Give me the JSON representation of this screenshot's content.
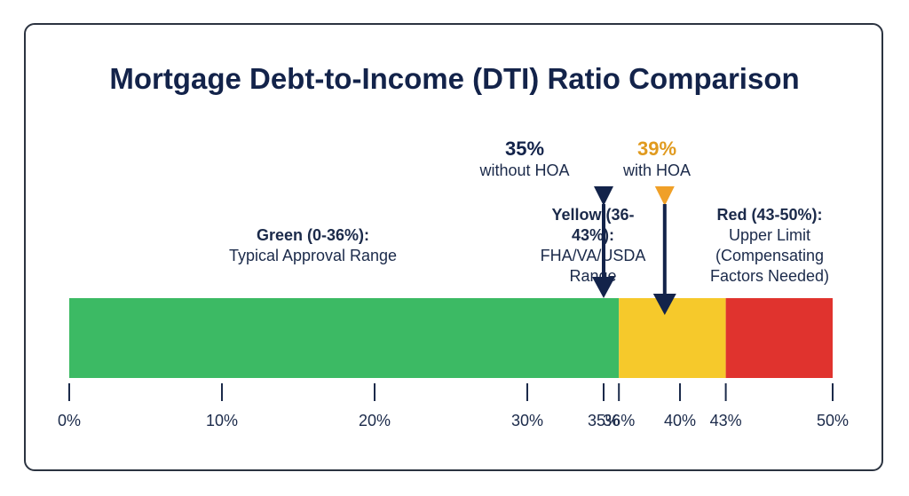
{
  "chart_data": {
    "type": "bar",
    "title": "Mortgage Debt-to-Income (DTI) Ratio Comparison",
    "xlim": [
      0,
      50
    ],
    "segments": [
      {
        "name": "Green",
        "start": 0,
        "end": 36,
        "color": "#3cba64",
        "label_bold": "Green (0-36%):",
        "label_rest": "Typical Approval Range"
      },
      {
        "name": "Yellow",
        "start": 36,
        "end": 43,
        "color": "#f6c92b",
        "label_bold": "Yellow (36-43%):",
        "label_rest": "FHA/VA/USDA Range"
      },
      {
        "name": "Red",
        "start": 43,
        "end": 50,
        "color": "#e0332e",
        "label_bold": "Red (43-50%):",
        "label_rest": "Upper Limit (Compensating Factors Needed)"
      }
    ],
    "ticks": [
      {
        "value": 0,
        "label": "0%"
      },
      {
        "value": 10,
        "label": "10%"
      },
      {
        "value": 20,
        "label": "20%"
      },
      {
        "value": 30,
        "label": "30%"
      },
      {
        "value": 35,
        "label": "35%"
      },
      {
        "value": 36,
        "label": "36%"
      },
      {
        "value": 40,
        "label": "40%"
      },
      {
        "value": 43,
        "label": "43%"
      },
      {
        "value": 50,
        "label": "50%"
      }
    ],
    "markers": [
      {
        "value": 35,
        "label": "35%",
        "sublabel": "without HOA",
        "label_color": "#13234a",
        "arrow_color": "#13234a",
        "head_color": "#13234a"
      },
      {
        "value": 39,
        "label": "39%",
        "sublabel": "with HOA",
        "label_color": "#e09a1e",
        "arrow_color": "#13234a",
        "head_color": "#f0a028"
      }
    ]
  }
}
